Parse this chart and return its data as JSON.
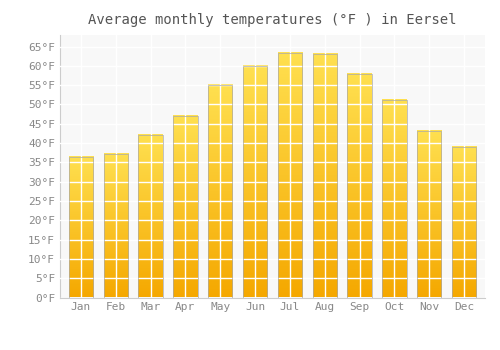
{
  "months": [
    "Jan",
    "Feb",
    "Mar",
    "Apr",
    "May",
    "Jun",
    "Jul",
    "Aug",
    "Sep",
    "Oct",
    "Nov",
    "Dec"
  ],
  "values": [
    36.5,
    37.2,
    42.0,
    47.0,
    55.0,
    60.0,
    63.3,
    63.0,
    58.0,
    51.2,
    43.2,
    39.0
  ],
  "bar_color_bottom": "#F5A800",
  "bar_color_top": "#FFD966",
  "bar_edge_color": "#AAAAAA",
  "title": "Average monthly temperatures (°F ) in Eersel",
  "ylim": [
    0,
    68
  ],
  "yticks": [
    0,
    5,
    10,
    15,
    20,
    25,
    30,
    35,
    40,
    45,
    50,
    55,
    60,
    65
  ],
  "ytick_labels": [
    "0°F",
    "5°F",
    "10°F",
    "15°F",
    "20°F",
    "25°F",
    "30°F",
    "35°F",
    "40°F",
    "45°F",
    "50°F",
    "55°F",
    "60°F",
    "65°F"
  ],
  "background_color": "#FFFFFF",
  "plot_bg_color": "#F8F8F8",
  "grid_color": "#FFFFFF",
  "title_fontsize": 10,
  "tick_fontsize": 8,
  "tick_color": "#888888",
  "title_color": "#555555"
}
